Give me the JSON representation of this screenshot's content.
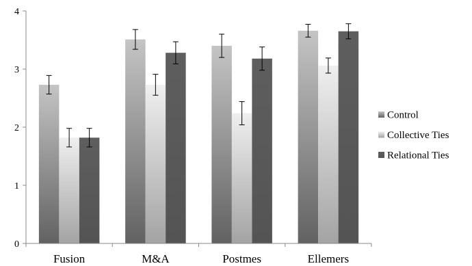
{
  "chart_data": {
    "type": "bar",
    "title": "",
    "xlabel": "",
    "ylabel": "",
    "categories": [
      "Fusion",
      "M&A",
      "Postmes",
      "Ellemers"
    ],
    "series": [
      {
        "name": "Control",
        "values": [
          2.73,
          3.51,
          3.4,
          3.66
        ],
        "errors": [
          0.16,
          0.17,
          0.2,
          0.11
        ],
        "color_top": "#c4c4c4",
        "color_bottom": "#626262"
      },
      {
        "name": "Collective Ties",
        "values": [
          1.82,
          2.73,
          2.24,
          3.06
        ],
        "errors": [
          0.16,
          0.18,
          0.2,
          0.13
        ],
        "color_top": "#efefef",
        "color_bottom": "#a3a3a3"
      },
      {
        "name": "Relational Ties",
        "values": [
          1.82,
          3.28,
          3.18,
          3.65
        ],
        "errors": [
          0.16,
          0.19,
          0.2,
          0.13
        ],
        "color_top": "#5e5e5e",
        "color_bottom": "#545454"
      }
    ],
    "ylim": [
      0,
      4
    ],
    "yticks": [
      0,
      1,
      2,
      3,
      4
    ],
    "legend_position": "right",
    "grid": false
  }
}
